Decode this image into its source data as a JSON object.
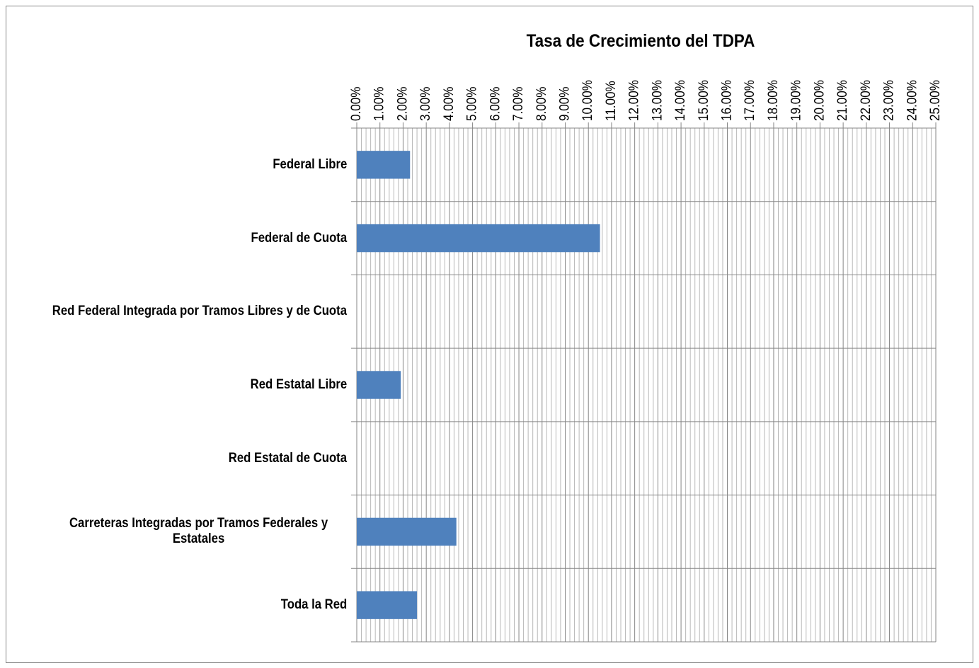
{
  "chart_data": {
    "type": "bar",
    "orientation": "horizontal",
    "title": "Tasa de Crecimiento del TDPA",
    "categories": [
      "Federal Libre",
      "Federal de Cuota",
      "Red Federal Integrada por Tramos Libres y de Cuota",
      "Red Estatal Libre",
      "Red Estatal de Cuota",
      "Carreteras Integradas por Tramos Federales y Estatales",
      "Toda la Red"
    ],
    "values": [
      2.3,
      10.5,
      null,
      1.9,
      null,
      4.3,
      2.6
    ],
    "color": "#4f81bd",
    "xlim": [
      0,
      25
    ],
    "xticks": [
      {
        "value": 0,
        "label": "0.00%"
      },
      {
        "value": 1,
        "label": "1.00%"
      },
      {
        "value": 2,
        "label": "2.00%"
      },
      {
        "value": 3,
        "label": "3.00%"
      },
      {
        "value": 4,
        "label": "4.00%"
      },
      {
        "value": 5,
        "label": "5.00%"
      },
      {
        "value": 6,
        "label": "6.00%"
      },
      {
        "value": 7,
        "label": "7.00%"
      },
      {
        "value": 8,
        "label": "8.00%"
      },
      {
        "value": 9,
        "label": "9.00%"
      },
      {
        "value": 10,
        "label": "10.00%"
      },
      {
        "value": 11,
        "label": "11.00%"
      },
      {
        "value": 12,
        "label": "12.00%"
      },
      {
        "value": 13,
        "label": "13.00%"
      },
      {
        "value": 14,
        "label": "14.00%"
      },
      {
        "value": 15,
        "label": "15.00%"
      },
      {
        "value": 16,
        "label": "16.00%"
      },
      {
        "value": 17,
        "label": "17.00%"
      },
      {
        "value": 18,
        "label": "18.00%"
      },
      {
        "value": 19,
        "label": "19.00%"
      },
      {
        "value": 20,
        "label": "20.00%"
      },
      {
        "value": 21,
        "label": "21.00%"
      },
      {
        "value": 22,
        "label": "22.00%"
      },
      {
        "value": 23,
        "label": "23.00%"
      },
      {
        "value": 24,
        "label": "24.00%"
      },
      {
        "value": 25,
        "label": "25.00%"
      }
    ],
    "grid": true,
    "minor_grid": true
  }
}
